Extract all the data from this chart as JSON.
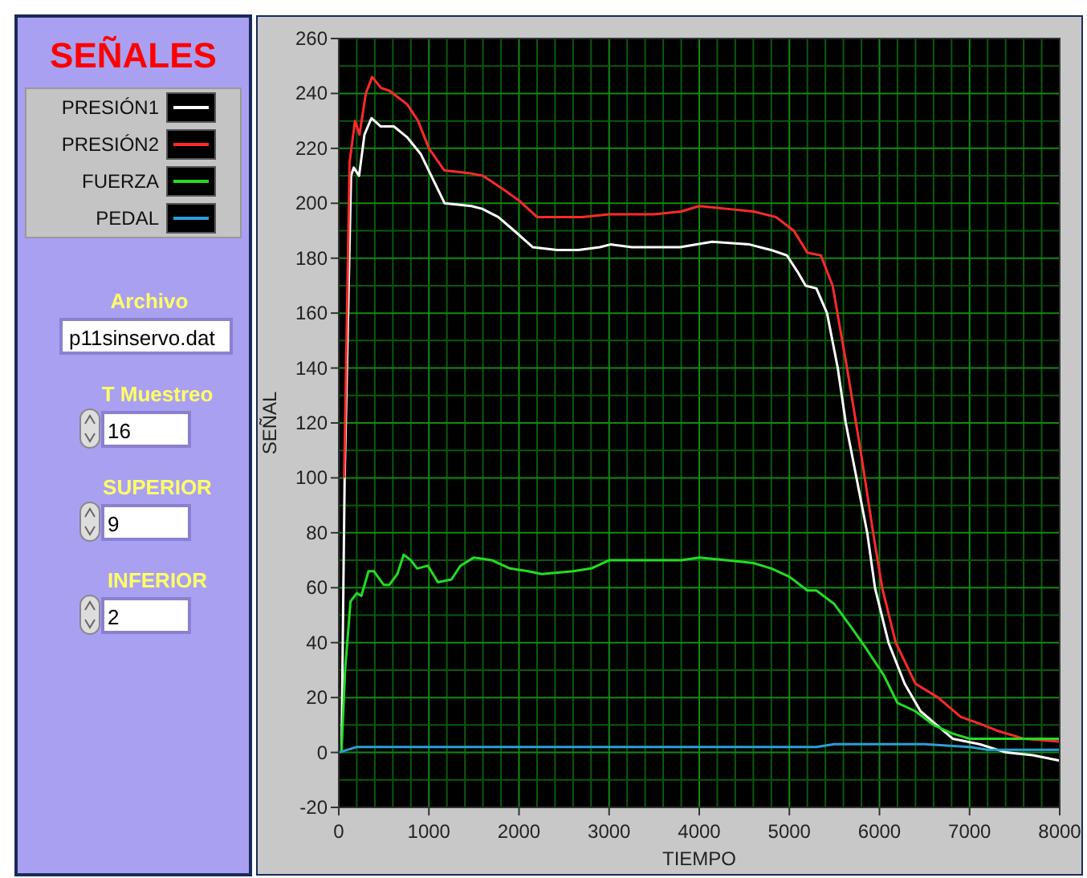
{
  "chart_data": {
    "type": "line",
    "title": "SEÑALES",
    "xlabel": "TIEMPO",
    "ylabel": "SEÑAL",
    "xlim": [
      0,
      8000
    ],
    "xticks": [
      0,
      {
        "value": 200,
        "label": null
      },
      {
        "value": 400,
        "label": null
      },
      {
        "value": 600,
        "label": null
      },
      {
        "value": 800,
        "label": null
      },
      1000,
      {
        "value": 1200,
        "label": null
      },
      {
        "value": 1400,
        "label": null
      },
      {
        "value": 1600,
        "label": null
      },
      {
        "value": 1800,
        "label": null
      },
      2000,
      {
        "value": 2200,
        "label": null
      },
      {
        "value": 2400,
        "label": null
      },
      {
        "value": 2600,
        "label": null
      },
      {
        "value": 2800,
        "label": null
      },
      3000,
      {
        "value": 3200,
        "label": null
      },
      {
        "value": 3400,
        "label": null
      },
      {
        "value": 3600,
        "label": null
      },
      {
        "value": 3800,
        "label": null
      },
      4000,
      {
        "value": 4200,
        "label": null
      },
      {
        "value": 4400,
        "label": null
      },
      {
        "value": 4600,
        "label": null
      },
      {
        "value": 4800,
        "label": null
      },
      5000,
      {
        "value": 5200,
        "label": null
      },
      {
        "value": 5400,
        "label": null
      },
      {
        "value": 5600,
        "label": null
      },
      {
        "value": 5800,
        "label": null
      },
      6000,
      {
        "value": 6200,
        "label": null
      },
      {
        "value": 6400,
        "label": null
      },
      {
        "value": 6600,
        "label": null
      },
      {
        "value": 6800,
        "label": null
      },
      7000,
      {
        "value": 7200,
        "label": null
      },
      {
        "value": 7400,
        "label": null
      },
      {
        "value": 7600,
        "label": null
      },
      {
        "value": 7800,
        "label": null
      },
      8000
    ],
    "ylim": [
      -20,
      260
    ],
    "yticks": [
      -20,
      {
        "value": -10,
        "label": null
      },
      0,
      {
        "value": 10,
        "label": null
      },
      20,
      {
        "value": 30,
        "label": null
      },
      40,
      {
        "value": 50,
        "label": null
      },
      60,
      {
        "value": 70,
        "label": null
      },
      80,
      {
        "value": 90,
        "label": null
      },
      100,
      {
        "value": 110,
        "label": null
      },
      120,
      {
        "value": 130,
        "label": null
      },
      140,
      {
        "value": 150,
        "label": null
      },
      160,
      {
        "value": 170,
        "label": null
      },
      180,
      {
        "value": 190,
        "label": null
      },
      200,
      {
        "value": 210,
        "label": null
      },
      220,
      {
        "value": 230,
        "label": null
      },
      240,
      {
        "value": 250,
        "label": null
      },
      260
    ],
    "grid": true,
    "legend": "left",
    "line_style": "solid",
    "marker": "none",
    "annotations": [
      "Archivo",
      "p11sinservo.dat",
      "T Muestreo",
      "16",
      "SUPERIOR",
      "9",
      "INFERIOR",
      "2"
    ],
    "series": [
      {
        "name": "PRESIÓN1",
        "color": "#ffffff",
        "x": [
          30,
          65,
          136,
          166,
          225,
          285,
          362,
          463,
          611,
          760,
          908,
          1027,
          1175,
          1472,
          1590,
          1769,
          1947,
          2154,
          2421,
          2659,
          2896,
          3015,
          3252,
          3786,
          4142,
          4558,
          4795,
          4973,
          5092,
          5181,
          5300,
          5418,
          5537,
          5626,
          5745,
          5864,
          5950,
          6100,
          6280,
          6456,
          6635,
          6813,
          7110,
          7407,
          7703,
          8000
        ],
        "values": [
          0,
          100,
          210,
          213,
          210,
          225,
          231,
          228,
          228,
          224,
          218,
          210,
          200,
          199,
          198,
          195,
          190,
          184,
          183,
          183,
          184,
          185,
          184,
          184,
          186,
          185,
          183,
          181,
          175,
          170,
          169,
          160,
          140,
          120,
          100,
          80,
          60,
          40,
          25,
          15,
          10,
          5,
          3,
          0,
          -1,
          -3
        ]
      },
      {
        "name": "PRESIÓN2",
        "color": "#ff2a2a",
        "x": [
          60,
          120,
          180,
          230,
          300,
          370,
          470,
          560,
          760,
          880,
          1000,
          1170,
          1440,
          1600,
          1830,
          2000,
          2200,
          2700,
          3000,
          3500,
          3800,
          4000,
          4300,
          4600,
          4850,
          5050,
          5200,
          5350,
          5480,
          5640,
          5790,
          5930,
          6030,
          6180,
          6400,
          6650,
          6900,
          7150,
          7300,
          7600,
          8000
        ],
        "values": [
          100,
          215,
          230,
          225,
          240,
          246,
          242,
          241,
          236,
          230,
          220,
          212,
          211,
          210,
          205,
          201,
          195,
          195,
          196,
          196,
          197,
          199,
          198,
          197,
          195,
          190,
          182,
          181,
          170,
          140,
          110,
          80,
          60,
          40,
          25,
          20,
          13,
          10,
          8,
          5,
          4
        ]
      },
      {
        "name": "FUERZA",
        "color": "#22dd22",
        "x": [
          30,
          70,
          130,
          200,
          250,
          330,
          390,
          500,
          560,
          650,
          720,
          800,
          870,
          990,
          1100,
          1250,
          1350,
          1500,
          1700,
          1900,
          2100,
          2250,
          2600,
          2800,
          3000,
          3500,
          3800,
          4000,
          4300,
          4600,
          4800,
          5000,
          5200,
          5300,
          5500,
          5700,
          5850,
          6050,
          6200,
          6400,
          6600,
          6800,
          7000,
          8000
        ],
        "values": [
          0,
          30,
          55,
          58,
          57,
          66,
          66,
          61,
          61,
          65,
          72,
          70,
          67,
          68,
          62,
          63,
          68,
          71,
          70,
          67,
          66,
          65,
          66,
          67,
          70,
          70,
          70,
          71,
          70,
          69,
          67,
          64,
          59,
          59,
          54,
          45,
          38,
          28,
          18,
          15,
          10,
          7,
          5,
          5
        ]
      },
      {
        "name": "PEDAL",
        "color": "#2a9fd6",
        "x": [
          0,
          100,
          200,
          1000,
          2000,
          3000,
          4000,
          5000,
          5300,
          5500,
          6500,
          7000,
          7200,
          8000
        ],
        "values": [
          0,
          1,
          2,
          2,
          2,
          2,
          2,
          2,
          2,
          3,
          3,
          2,
          1,
          1
        ]
      }
    ]
  }
}
